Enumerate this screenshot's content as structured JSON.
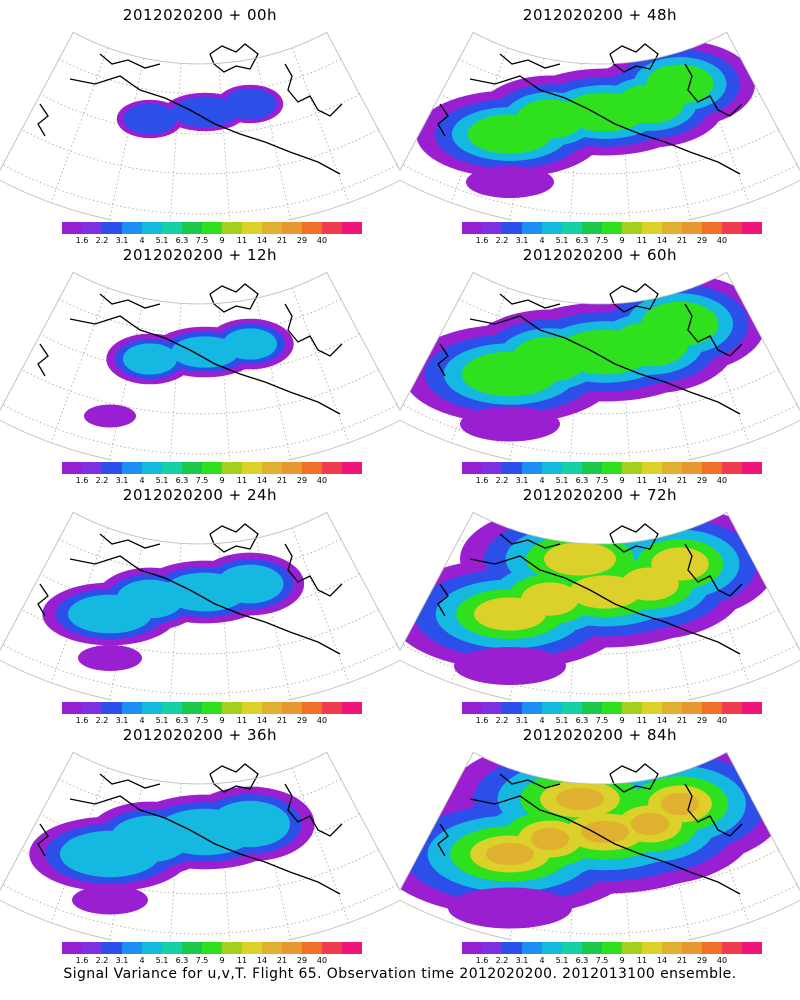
{
  "panels": [
    {
      "title": "2012020200 + 00h",
      "level": 0
    },
    {
      "title": "2012020200 + 48h",
      "level": 4
    },
    {
      "title": "2012020200 + 12h",
      "level": 1
    },
    {
      "title": "2012020200 + 60h",
      "level": 5
    },
    {
      "title": "2012020200 + 24h",
      "level": 2
    },
    {
      "title": "2012020200 + 72h",
      "level": 6
    },
    {
      "title": "2012020200 + 36h",
      "level": 3
    },
    {
      "title": "2012020200 + 84h",
      "level": 7
    }
  ],
  "colorbar": {
    "colors": [
      "#9a1fd0",
      "#7f2ee0",
      "#2b4fe8",
      "#1e8ff0",
      "#15b8e0",
      "#18d0a8",
      "#1cc84a",
      "#2ee01e",
      "#a6d020",
      "#dcd02a",
      "#e0b030",
      "#e89830",
      "#f07028",
      "#f03c50",
      "#f0147a"
    ],
    "labels": [
      "1.6",
      "2.2",
      "3.1",
      "4",
      "5.1",
      "6.3",
      "7.5",
      "9",
      "11",
      "14",
      "21",
      "29",
      "40"
    ]
  },
  "footer": "Signal Variance for u,v,T. Flight 65. Observation time 2012020200. 2012013100 ensemble."
}
